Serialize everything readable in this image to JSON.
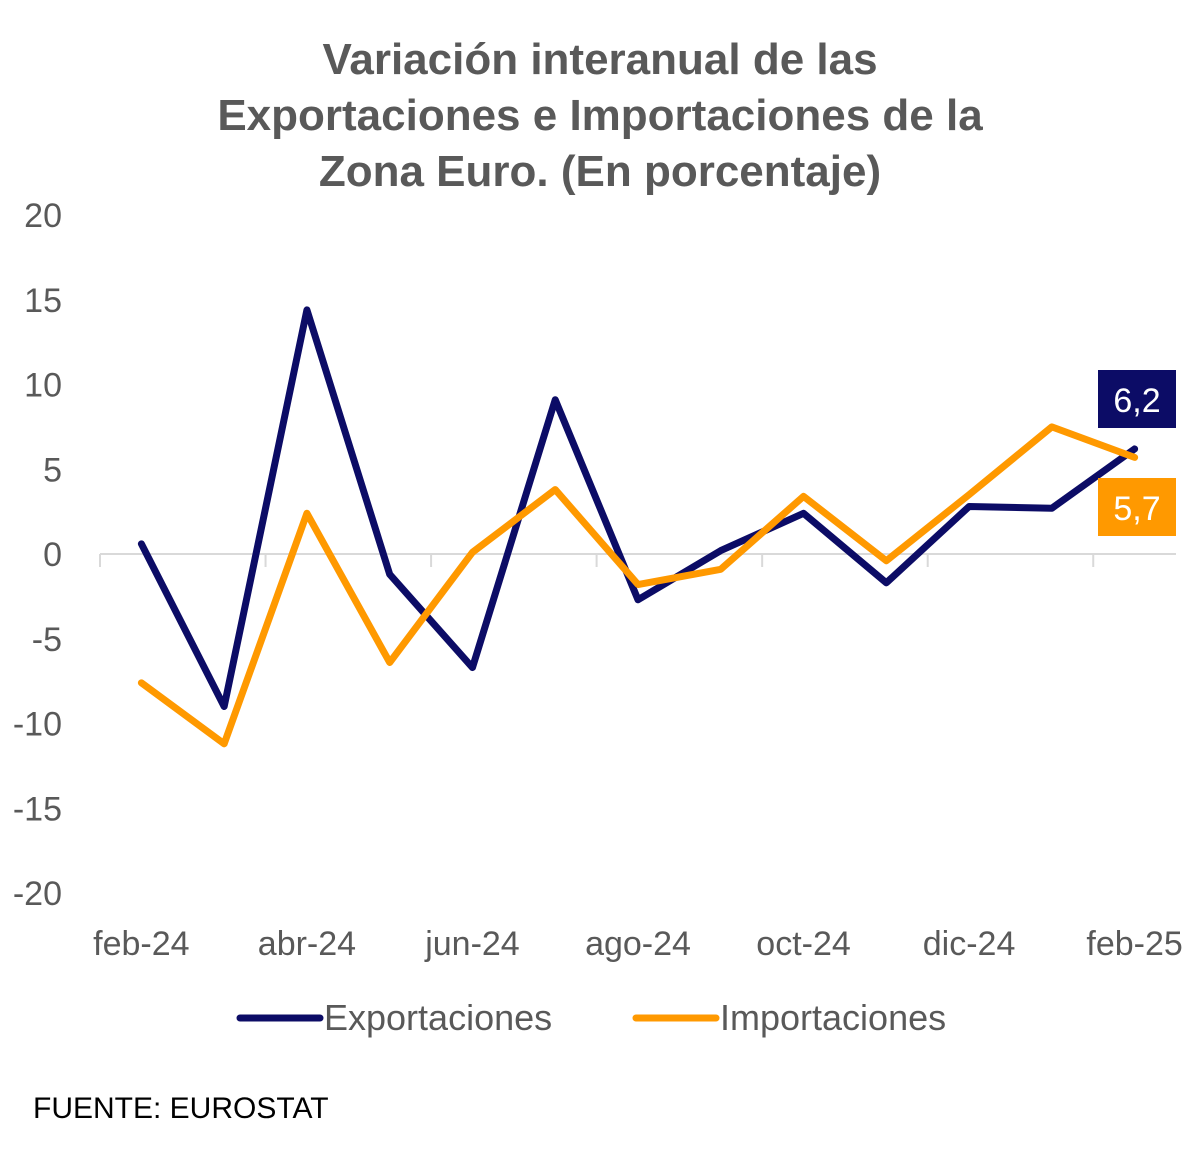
{
  "chart_data": {
    "type": "line",
    "title": "Variación interanual de las Exportaciones e Importaciones de la Zona Euro. (En porcentaje)",
    "title_lines": [
      "Variación interanual de las",
      "Exportaciones e Importaciones de la",
      "Zona Euro. (En porcentaje)"
    ],
    "categories": [
      "feb-24",
      "mar-24",
      "abr-24",
      "may-24",
      "jun-24",
      "jul-24",
      "ago-24",
      "sep-24",
      "oct-24",
      "nov-24",
      "dic-24",
      "ene-25",
      "feb-25"
    ],
    "tick_labels": [
      "feb-24",
      "abr-24",
      "jun-24",
      "ago-24",
      "oct-24",
      "dic-24",
      "feb-25"
    ],
    "ylim": [
      -20,
      20
    ],
    "yticks": [
      20,
      15,
      10,
      5,
      0,
      -5,
      -10,
      -15,
      -20
    ],
    "grid": false,
    "legend": "bottom",
    "series": [
      {
        "name": "Exportaciones",
        "color": "#0C0C66",
        "values": [
          0.6,
          -9.0,
          14.4,
          -1.2,
          -6.7,
          9.1,
          -2.7,
          0.2,
          2.4,
          -1.7,
          2.8,
          2.7,
          6.2
        ],
        "end_label": "6,2"
      },
      {
        "name": "Importaciones",
        "color": "#FF9900",
        "values": [
          -7.6,
          -11.2,
          2.4,
          -6.4,
          0.1,
          3.8,
          -1.8,
          -0.9,
          3.4,
          -0.4,
          3.5,
          7.5,
          5.7
        ],
        "end_label": "5,7"
      }
    ]
  },
  "source": "FUENTE: EUROSTAT"
}
